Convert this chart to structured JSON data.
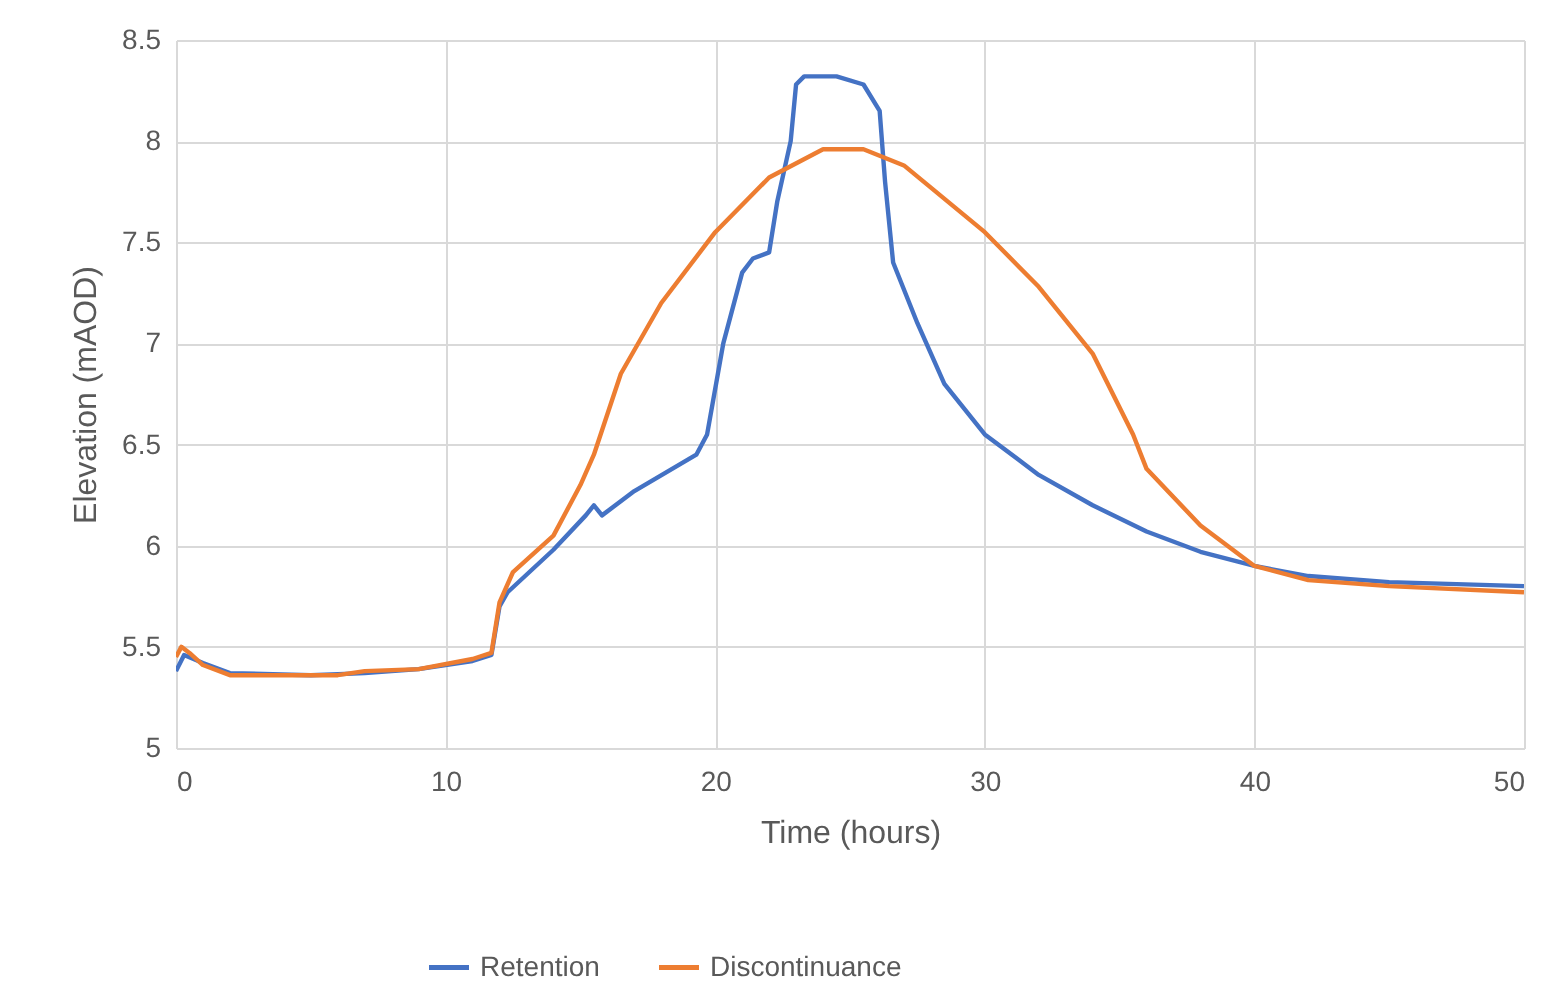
{
  "chart_data": {
    "type": "line",
    "xlabel": "Time (hours)",
    "ylabel": "Elevation (mAOD)",
    "xlim": [
      0,
      50
    ],
    "xticks": [
      0,
      10,
      20,
      30,
      40,
      50
    ],
    "ylim": [
      5,
      8.5
    ],
    "yticks": [
      5,
      5.5,
      6,
      6.5,
      7,
      7.5,
      8,
      8.5
    ],
    "grid": true,
    "legend": "bottom",
    "line_style": "solid",
    "marker": "none",
    "series": [
      {
        "name": "Retention",
        "color": "#4472c4",
        "x": [
          0,
          0.3,
          1,
          2,
          5,
          7,
          9,
          11,
          11.7,
          12,
          12.3,
          14,
          15.2,
          15.5,
          15.8,
          17,
          19.3,
          19.7,
          20.3,
          21,
          21.4,
          22,
          22.3,
          22.8,
          23,
          23.3,
          24.5,
          25.5,
          26.1,
          26.3,
          26.6,
          27.5,
          28.5,
          30,
          32,
          34,
          36,
          38,
          40,
          42,
          45,
          50
        ],
        "values": [
          5.38,
          5.46,
          5.42,
          5.37,
          5.36,
          5.37,
          5.39,
          5.43,
          5.46,
          5.7,
          5.77,
          5.98,
          6.15,
          6.2,
          6.15,
          6.27,
          6.45,
          6.55,
          7.0,
          7.35,
          7.42,
          7.45,
          7.7,
          8.0,
          8.28,
          8.32,
          8.32,
          8.28,
          8.15,
          7.8,
          7.4,
          7.1,
          6.8,
          6.55,
          6.35,
          6.2,
          6.07,
          5.97,
          5.9,
          5.85,
          5.82,
          5.8
        ]
      },
      {
        "name": "Discontinuance",
        "color": "#ed7d31",
        "x": [
          0,
          0.2,
          0.5,
          1,
          2,
          6,
          7,
          9,
          11,
          11.7,
          12,
          12.5,
          14,
          15,
          15.5,
          16.5,
          18,
          20,
          22,
          24,
          25.5,
          27,
          30,
          32,
          34,
          35.5,
          36,
          38,
          40,
          42,
          45,
          50
        ],
        "values": [
          5.45,
          5.5,
          5.47,
          5.41,
          5.36,
          5.36,
          5.38,
          5.39,
          5.44,
          5.47,
          5.72,
          5.87,
          6.05,
          6.3,
          6.45,
          6.85,
          7.2,
          7.55,
          7.82,
          7.96,
          7.96,
          7.88,
          7.55,
          7.28,
          6.95,
          6.55,
          6.38,
          6.1,
          5.9,
          5.83,
          5.8,
          5.77
        ]
      }
    ]
  }
}
